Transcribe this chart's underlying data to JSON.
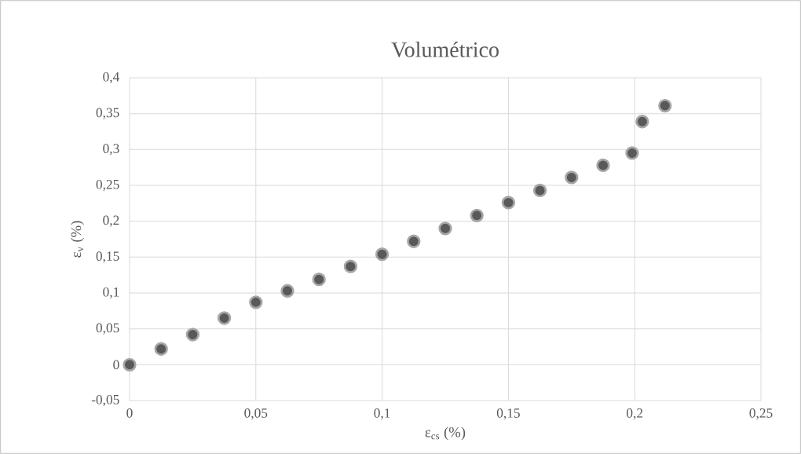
{
  "chart_data": {
    "type": "scatter",
    "title": "Volumétrico",
    "xlabel": "ε$_{cs}$ (%)",
    "ylabel": "ε$_{v}$ (%)",
    "x": [
      0,
      0.0125,
      0.025,
      0.0375,
      0.05,
      0.0625,
      0.075,
      0.0875,
      0.1,
      0.1125,
      0.125,
      0.1375,
      0.15,
      0.1625,
      0.175,
      0.1875,
      0.199,
      0.203,
      0.212
    ],
    "values": [
      0,
      0.022,
      0.042,
      0.065,
      0.087,
      0.103,
      0.119,
      0.137,
      0.154,
      0.172,
      0.19,
      0.208,
      0.226,
      0.243,
      0.261,
      0.278,
      0.295,
      0.339,
      0.361
    ],
    "color": "#595959",
    "marker": "circle",
    "grid": true,
    "xlim": [
      0,
      0.25
    ],
    "ylim": [
      -0.05,
      0.4
    ],
    "xticks": [
      0,
      {
        "value": 0.05,
        "label": "0,05"
      },
      {
        "value": 0.1,
        "label": "0,1"
      },
      {
        "value": 0.15,
        "label": "0,15"
      },
      {
        "value": 0.2,
        "label": "0,2"
      },
      {
        "value": 0.25,
        "label": "0,25"
      }
    ],
    "yticks": [
      {
        "value": -0.05,
        "label": "-0,05"
      },
      0,
      {
        "value": 0.05,
        "label": "0,05"
      },
      {
        "value": 0.1,
        "label": "0,1"
      },
      {
        "value": 0.15,
        "label": "0,15"
      },
      {
        "value": 0.2,
        "label": "0,2"
      },
      {
        "value": 0.25,
        "label": "0,25"
      },
      {
        "value": 0.3,
        "label": "0,3"
      },
      {
        "value": 0.35,
        "label": "0,35"
      },
      {
        "value": 0.4,
        "label": "0,4"
      }
    ]
  }
}
